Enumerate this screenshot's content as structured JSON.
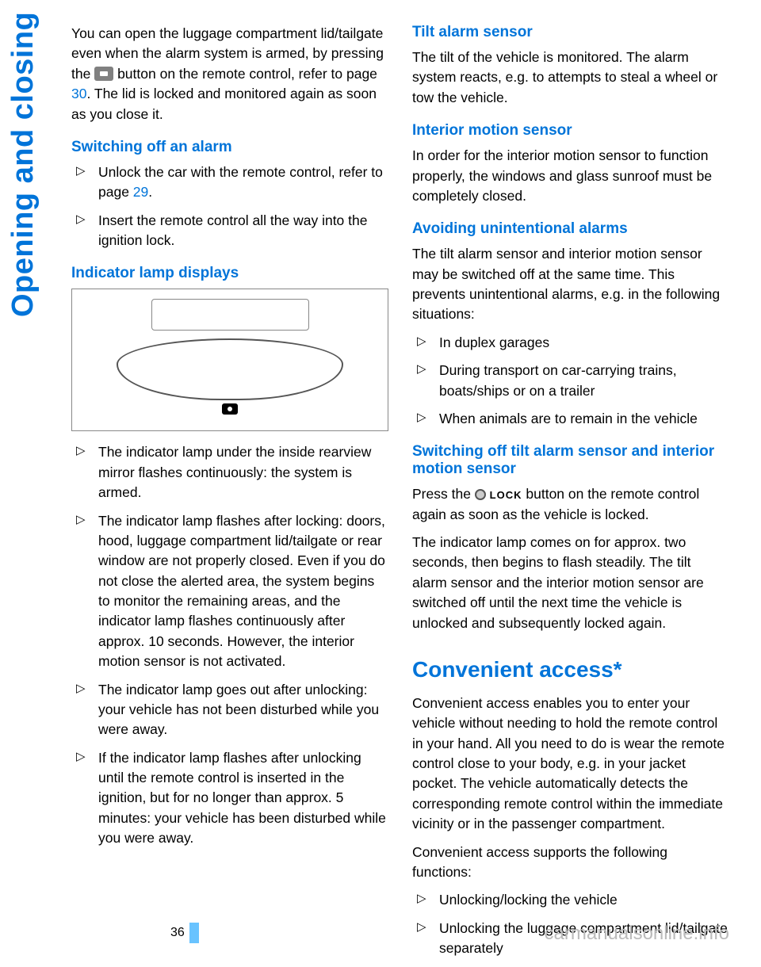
{
  "side_title": "Opening and closing",
  "page_number": "36",
  "watermark": "carmanualsonline.info",
  "left": {
    "intro_1": "You can open the luggage compartment lid/tailgate even when the alarm system is armed, by pressing the ",
    "intro_2": " button on the remote control, refer to page ",
    "intro_ref": "30",
    "intro_3": ". The lid is locked and monitored again as soon as you close it.",
    "h_switch_off": "Switching off an alarm",
    "switch_items": [
      {
        "text_a": "Unlock the car with the remote control, refer to page ",
        "ref": "29",
        "text_b": "."
      },
      {
        "text_a": "Insert the remote control all the way into the ignition lock.",
        "ref": "",
        "text_b": ""
      }
    ],
    "h_indicator": "Indicator lamp displays",
    "indicator_items": [
      "The indicator lamp under the inside rearview mirror flashes continuously: the system is armed.",
      "The indicator lamp flashes after locking: doors, hood, luggage compartment lid/tailgate or rear window are not properly closed. Even if you do not close the alerted area, the system begins to monitor the remaining areas, and the indicator lamp flashes continuously after approx. 10 seconds. However, the interior motion sensor is not activated.",
      "The indicator lamp goes out after unlocking: your vehicle has not been disturbed while you were away.",
      "If the indicator lamp flashes after unlocking until the remote control is inserted in the ignition, but for no longer than approx. 5 minutes: your vehicle has been disturbed while you were away."
    ]
  },
  "right": {
    "h_tilt": "Tilt alarm sensor",
    "tilt_p": "The tilt of the vehicle is monitored. The alarm system reacts, e.g. to attempts to steal a wheel or tow the vehicle.",
    "h_interior": "Interior motion sensor",
    "interior_p": "In order for the interior motion sensor to function properly, the windows and glass sunroof must be completely closed.",
    "h_avoid": "Avoiding unintentional alarms",
    "avoid_p": "The tilt alarm sensor and interior motion sensor may be switched off at the same time. This prevents unintentional alarms, e.g. in the following situations:",
    "avoid_items": [
      "In duplex garages",
      "During transport on car-carrying trains, boats/ships or on a trailer",
      "When animals are to remain in the vehicle"
    ],
    "h_switch_sensors": "Switching off tilt alarm sensor and interior motion sensor",
    "switch_sensors_p1a": "Press the ",
    "switch_sensors_lock": "LOCK",
    "switch_sensors_p1b": " button on the remote control again as soon as the vehicle is locked.",
    "switch_sensors_p2": "The indicator lamp comes on for approx. two seconds, then begins to flash steadily. The tilt alarm sensor and the interior motion sensor are switched off until the next time the vehicle is unlocked and subsequently locked again.",
    "h_convenient": "Convenient access*",
    "conv_p1": "Convenient access enables you to enter your vehicle without needing to hold the remote control in your hand. All you need to do is wear the remote control close to your body, e.g. in your jacket pocket. The vehicle automatically detects the corresponding remote control within the immediate vicinity or in the passenger compartment.",
    "conv_p2": "Convenient access supports the following functions:",
    "conv_items": [
      "Unlocking/locking the vehicle",
      "Unlocking the luggage compartment lid/tailgate separately"
    ]
  },
  "colors": {
    "accent": "#0074d9",
    "bar": "#69c3ff",
    "text": "#000000",
    "watermark": "#bbbbbb"
  }
}
